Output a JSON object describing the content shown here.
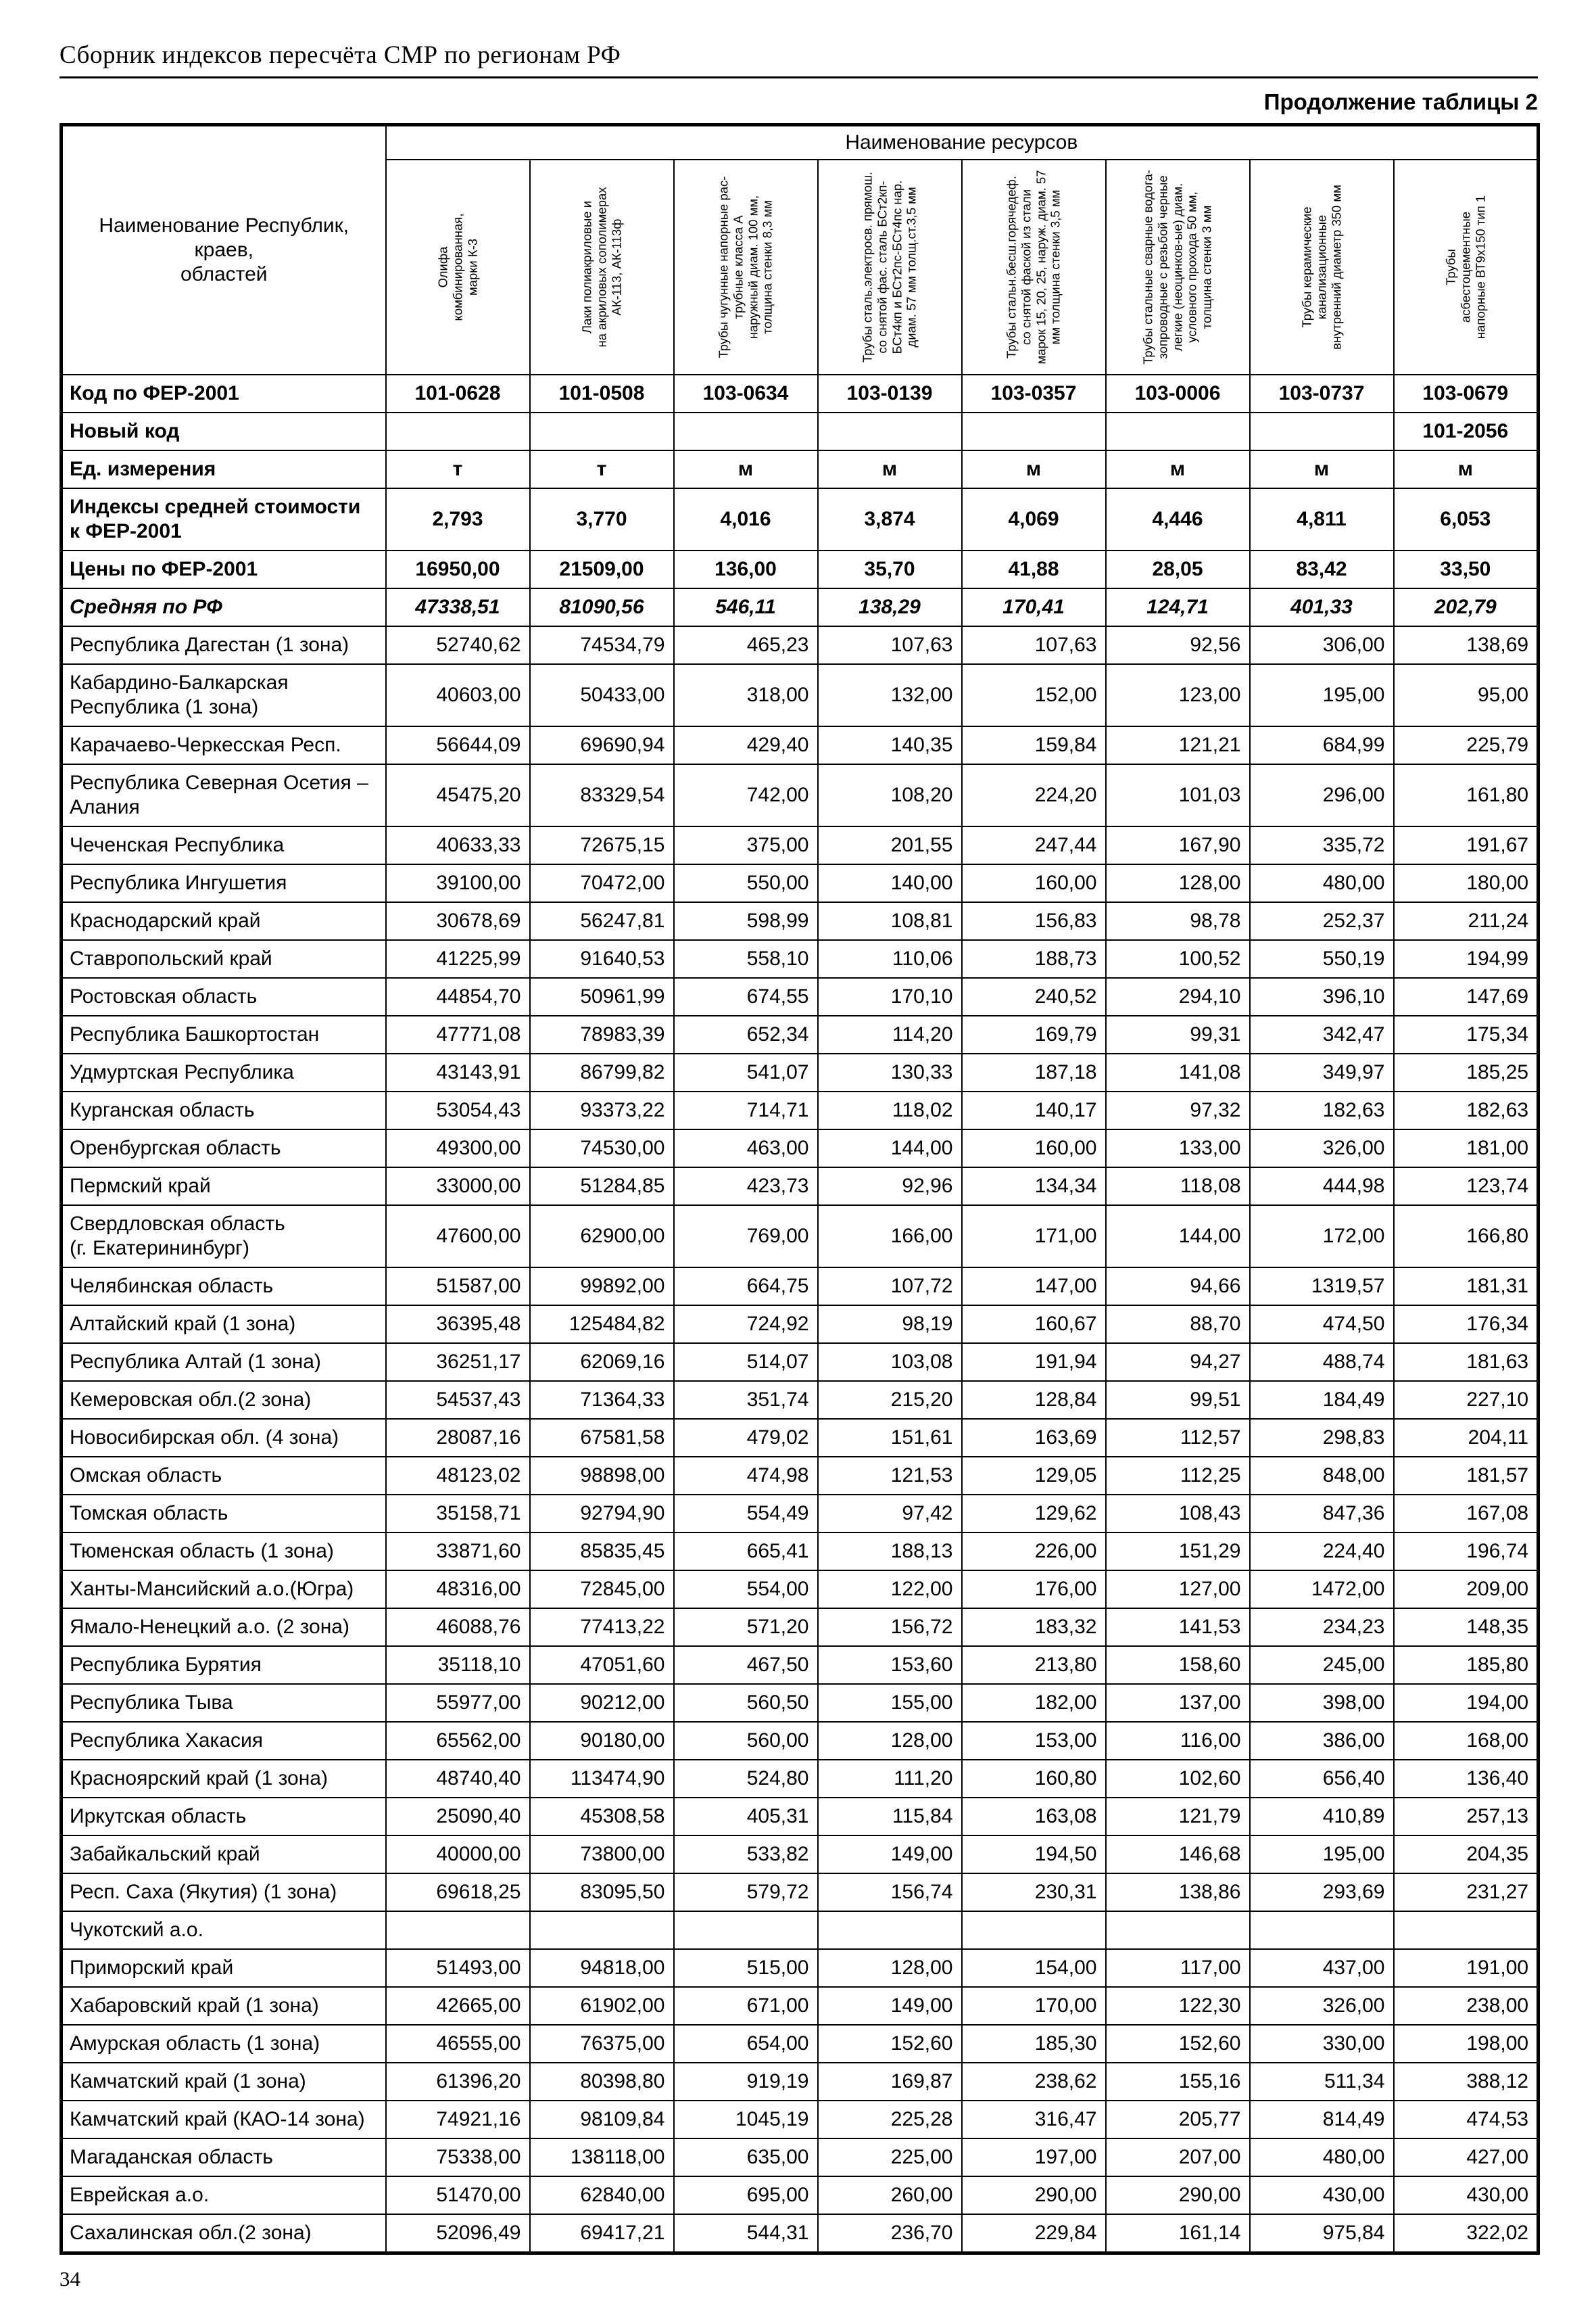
{
  "page": {
    "header_title": "Сборник индексов пересчёта СМР  по регионам РФ",
    "continuation_label": "Продолжение таблицы 2",
    "page_number": "34"
  },
  "table": {
    "row_header_label": "Наименование Республик, краев,\nобластей",
    "resources_group_label": "Наименование ресурсов",
    "columns": [
      "Олифа\nкомбинированная,\nмарки К-3",
      "Лаки полиакриловые и\nна акриловых сополимерах\nАК-113, АК-113ф",
      "Трубы чугунные напорные рас-\nтрубные класса А\nнаружный диам. 100 мм,\nтолщина стенки 8,3 мм",
      "Трубы сталь.электросв. прямош.\nсо снятой фас. сталь БСт2кп-\nБСт4кп и БСт2пс-БСт4пс нар.\nдиам. 57 мм толщ.ст.3,5 мм",
      "Трубы стальн.бесш.горячедеф.\nсо снятой фаской из стали\nмарок 15, 20, 25, наруж. диам. 57\nмм толщина стенки 3,5 мм",
      "Трубы стальные сварные водога-\nзопроводные с резьбой черные\nлегкие (неоцинков-ые) диам.\nусловного прохода 50 мм,\nтолщина стенки 3 мм",
      "Трубы керамические\nканализационные\nвнутренний диаметр 350 мм",
      "Трубы\nасбестоцементные\nнапорные ВТ9х150 тип 1"
    ],
    "meta_rows": [
      {
        "label": "Код по ФЕР-2001",
        "align": "center",
        "italic": false,
        "values": [
          "101-0628",
          "101-0508",
          "103-0634",
          "103-0139",
          "103-0357",
          "103-0006",
          "103-0737",
          "103-0679"
        ]
      },
      {
        "label": "Новый код",
        "align": "center",
        "italic": false,
        "values": [
          "",
          "",
          "",
          "",
          "",
          "",
          "",
          "101-2056"
        ]
      },
      {
        "label": "Ед. измерения",
        "align": "center",
        "italic": false,
        "values": [
          "т",
          "т",
          "м",
          "м",
          "м",
          "м",
          "м",
          "м"
        ]
      },
      {
        "label": "Индексы средней стоимости\nк ФЕР-2001",
        "align": "center",
        "italic": false,
        "values": [
          "2,793",
          "3,770",
          "4,016",
          "3,874",
          "4,069",
          "4,446",
          "4,811",
          "6,053"
        ]
      },
      {
        "label": "Цены по ФЕР-2001",
        "align": "center",
        "italic": false,
        "values": [
          "16950,00",
          "21509,00",
          "136,00",
          "35,70",
          "41,88",
          "28,05",
          "83,42",
          "33,50"
        ]
      },
      {
        "label": "Средняя по РФ",
        "align": "center",
        "italic": true,
        "values": [
          "47338,51",
          "81090,56",
          "546,11",
          "138,29",
          "170,41",
          "124,71",
          "401,33",
          "202,79"
        ]
      }
    ],
    "region_rows": [
      {
        "name": "Республика Дагестан (1 зона)",
        "values": [
          "52740,62",
          "74534,79",
          "465,23",
          "107,63",
          "107,63",
          "92,56",
          "306,00",
          "138,69"
        ]
      },
      {
        "name": "Кабардино-Балкарская\nРеспублика (1 зона)",
        "values": [
          "40603,00",
          "50433,00",
          "318,00",
          "132,00",
          "152,00",
          "123,00",
          "195,00",
          "95,00"
        ]
      },
      {
        "name": "Карачаево-Черкесская Респ.",
        "values": [
          "56644,09",
          "69690,94",
          "429,40",
          "140,35",
          "159,84",
          "121,21",
          "684,99",
          "225,79"
        ]
      },
      {
        "name": "Республика Северная Осетия –\nАлания",
        "values": [
          "45475,20",
          "83329,54",
          "742,00",
          "108,20",
          "224,20",
          "101,03",
          "296,00",
          "161,80"
        ]
      },
      {
        "name": "Чеченская Республика",
        "values": [
          "40633,33",
          "72675,15",
          "375,00",
          "201,55",
          "247,44",
          "167,90",
          "335,72",
          "191,67"
        ]
      },
      {
        "name": "Республика Ингушетия",
        "values": [
          "39100,00",
          "70472,00",
          "550,00",
          "140,00",
          "160,00",
          "128,00",
          "480,00",
          "180,00"
        ]
      },
      {
        "name": "Краснодарский край",
        "values": [
          "30678,69",
          "56247,81",
          "598,99",
          "108,81",
          "156,83",
          "98,78",
          "252,37",
          "211,24"
        ]
      },
      {
        "name": "Ставропольский край",
        "values": [
          "41225,99",
          "91640,53",
          "558,10",
          "110,06",
          "188,73",
          "100,52",
          "550,19",
          "194,99"
        ]
      },
      {
        "name": "Ростовская область",
        "values": [
          "44854,70",
          "50961,99",
          "674,55",
          "170,10",
          "240,52",
          "294,10",
          "396,10",
          "147,69"
        ]
      },
      {
        "name": "Республика Башкортостан",
        "values": [
          "47771,08",
          "78983,39",
          "652,34",
          "114,20",
          "169,79",
          "99,31",
          "342,47",
          "175,34"
        ]
      },
      {
        "name": "Удмуртская Республика",
        "values": [
          "43143,91",
          "86799,82",
          "541,07",
          "130,33",
          "187,18",
          "141,08",
          "349,97",
          "185,25"
        ]
      },
      {
        "name": "Курганская область",
        "values": [
          "53054,43",
          "93373,22",
          "714,71",
          "118,02",
          "140,17",
          "97,32",
          "182,63",
          "182,63"
        ]
      },
      {
        "name": "Оренбургская область",
        "values": [
          "49300,00",
          "74530,00",
          "463,00",
          "144,00",
          "160,00",
          "133,00",
          "326,00",
          "181,00"
        ]
      },
      {
        "name": "Пермский край",
        "values": [
          "33000,00",
          "51284,85",
          "423,73",
          "92,96",
          "134,34",
          "118,08",
          "444,98",
          "123,74"
        ]
      },
      {
        "name": "Свердловская область\n(г. Екатерининбург)",
        "values": [
          "47600,00",
          "62900,00",
          "769,00",
          "166,00",
          "171,00",
          "144,00",
          "172,00",
          "166,80"
        ]
      },
      {
        "name": "Челябинская область",
        "values": [
          "51587,00",
          "99892,00",
          "664,75",
          "107,72",
          "147,00",
          "94,66",
          "1319,57",
          "181,31"
        ]
      },
      {
        "name": "Алтайский край (1 зона)",
        "values": [
          "36395,48",
          "125484,82",
          "724,92",
          "98,19",
          "160,67",
          "88,70",
          "474,50",
          "176,34"
        ]
      },
      {
        "name": "Республика Алтай (1 зона)",
        "values": [
          "36251,17",
          "62069,16",
          "514,07",
          "103,08",
          "191,94",
          "94,27",
          "488,74",
          "181,63"
        ]
      },
      {
        "name": "Кемеровская обл.(2 зона)",
        "values": [
          "54537,43",
          "71364,33",
          "351,74",
          "215,20",
          "128,84",
          "99,51",
          "184,49",
          "227,10"
        ]
      },
      {
        "name": "Новосибирская обл. (4 зона)",
        "values": [
          "28087,16",
          "67581,58",
          "479,02",
          "151,61",
          "163,69",
          "112,57",
          "298,83",
          "204,11"
        ]
      },
      {
        "name": "Омская область",
        "values": [
          "48123,02",
          "98898,00",
          "474,98",
          "121,53",
          "129,05",
          "112,25",
          "848,00",
          "181,57"
        ]
      },
      {
        "name": "Томская область",
        "values": [
          "35158,71",
          "92794,90",
          "554,49",
          "97,42",
          "129,62",
          "108,43",
          "847,36",
          "167,08"
        ]
      },
      {
        "name": "Тюменская область (1 зона)",
        "values": [
          "33871,60",
          "85835,45",
          "665,41",
          "188,13",
          "226,00",
          "151,29",
          "224,40",
          "196,74"
        ]
      },
      {
        "name": "Ханты-Мансийский а.о.(Югра)",
        "values": [
          "48316,00",
          "72845,00",
          "554,00",
          "122,00",
          "176,00",
          "127,00",
          "1472,00",
          "209,00"
        ]
      },
      {
        "name": "Ямало-Ненецкий а.о. (2 зона)",
        "values": [
          "46088,76",
          "77413,22",
          "571,20",
          "156,72",
          "183,32",
          "141,53",
          "234,23",
          "148,35"
        ]
      },
      {
        "name": "Республика Бурятия",
        "values": [
          "35118,10",
          "47051,60",
          "467,50",
          "153,60",
          "213,80",
          "158,60",
          "245,00",
          "185,80"
        ]
      },
      {
        "name": "Республика Тыва",
        "values": [
          "55977,00",
          "90212,00",
          "560,50",
          "155,00",
          "182,00",
          "137,00",
          "398,00",
          "194,00"
        ]
      },
      {
        "name": "Республика Хакасия",
        "values": [
          "65562,00",
          "90180,00",
          "560,00",
          "128,00",
          "153,00",
          "116,00",
          "386,00",
          "168,00"
        ]
      },
      {
        "name": "Красноярский край (1 зона)",
        "values": [
          "48740,40",
          "113474,90",
          "524,80",
          "111,20",
          "160,80",
          "102,60",
          "656,40",
          "136,40"
        ]
      },
      {
        "name": "Иркутская область",
        "values": [
          "25090,40",
          "45308,58",
          "405,31",
          "115,84",
          "163,08",
          "121,79",
          "410,89",
          "257,13"
        ]
      },
      {
        "name": "Забайкальский край",
        "values": [
          "40000,00",
          "73800,00",
          "533,82",
          "149,00",
          "194,50",
          "146,68",
          "195,00",
          "204,35"
        ]
      },
      {
        "name": "Респ. Саха (Якутия) (1 зона)",
        "values": [
          "69618,25",
          "83095,50",
          "579,72",
          "156,74",
          "230,31",
          "138,86",
          "293,69",
          "231,27"
        ]
      },
      {
        "name": "Чукотский а.о.",
        "values": [
          "",
          "",
          "",
          "",
          "",
          "",
          "",
          ""
        ]
      },
      {
        "name": "Приморский край",
        "values": [
          "51493,00",
          "94818,00",
          "515,00",
          "128,00",
          "154,00",
          "117,00",
          "437,00",
          "191,00"
        ]
      },
      {
        "name": "Хабаровский край (1 зона)",
        "values": [
          "42665,00",
          "61902,00",
          "671,00",
          "149,00",
          "170,00",
          "122,30",
          "326,00",
          "238,00"
        ]
      },
      {
        "name": "Амурская область (1 зона)",
        "values": [
          "46555,00",
          "76375,00",
          "654,00",
          "152,60",
          "185,30",
          "152,60",
          "330,00",
          "198,00"
        ]
      },
      {
        "name": "Камчатский край (1 зона)",
        "values": [
          "61396,20",
          "80398,80",
          "919,19",
          "169,87",
          "238,62",
          "155,16",
          "511,34",
          "388,12"
        ]
      },
      {
        "name": "Камчатский край (КАО-14 зона)",
        "values": [
          "74921,16",
          "98109,84",
          "1045,19",
          "225,28",
          "316,47",
          "205,77",
          "814,49",
          "474,53"
        ]
      },
      {
        "name": "Магаданская область",
        "values": [
          "75338,00",
          "138118,00",
          "635,00",
          "225,00",
          "197,00",
          "207,00",
          "480,00",
          "427,00"
        ]
      },
      {
        "name": "Еврейская а.о.",
        "values": [
          "51470,00",
          "62840,00",
          "695,00",
          "260,00",
          "290,00",
          "290,00",
          "430,00",
          "430,00"
        ]
      },
      {
        "name": "Сахалинская обл.(2 зона)",
        "values": [
          "52096,49",
          "69417,21",
          "544,31",
          "236,70",
          "229,84",
          "161,14",
          "975,84",
          "322,02"
        ]
      }
    ]
  }
}
